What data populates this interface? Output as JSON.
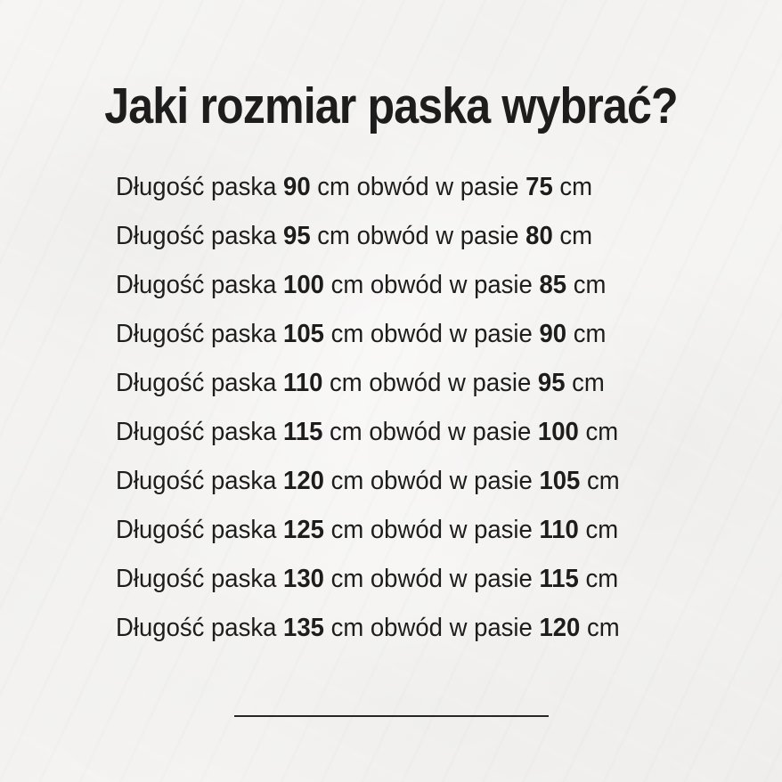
{
  "page": {
    "title": "Jaki rozmiar paska wybrać?"
  },
  "list": {
    "prefix": "Długość paska",
    "infix": "cm obwód w pasie",
    "suffix": "cm",
    "rows": [
      {
        "belt_length_cm": "90",
        "waist_cm": "75"
      },
      {
        "belt_length_cm": "95",
        "waist_cm": "80"
      },
      {
        "belt_length_cm": "100",
        "waist_cm": "85"
      },
      {
        "belt_length_cm": "105",
        "waist_cm": "90"
      },
      {
        "belt_length_cm": "110",
        "waist_cm": "95"
      },
      {
        "belt_length_cm": "115",
        "waist_cm": "100"
      },
      {
        "belt_length_cm": "120",
        "waist_cm": "105"
      },
      {
        "belt_length_cm": "125",
        "waist_cm": "110"
      },
      {
        "belt_length_cm": "130",
        "waist_cm": "115"
      },
      {
        "belt_length_cm": "135",
        "waist_cm": "120"
      }
    ]
  },
  "colors": {
    "background": "#f3f2f0",
    "text": "#1d1d1d",
    "divider": "#262626"
  }
}
